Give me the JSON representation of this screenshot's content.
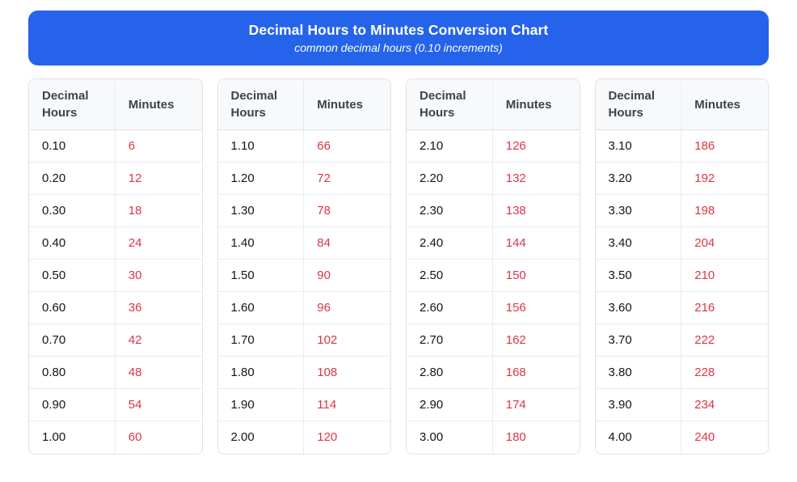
{
  "header": {
    "title": "Decimal Hours to Minutes Conversion Chart",
    "subtitle": "common decimal hours (0.10 increments)"
  },
  "colors": {
    "banner_bg": "#2563eb",
    "banner_text": "#ffffff",
    "minutes_text": "#dc3545",
    "hours_text": "#141414",
    "thead_bg": "#f8f9fa",
    "thead_text": "#3d434b",
    "table_border": "#dee2e6"
  },
  "chart_data": {
    "type": "table",
    "title": "Decimal Hours to Minutes Conversion Chart",
    "subtitle": "common decimal hours (0.10 increments)",
    "columns": [
      "Decimal Hours",
      "Minutes"
    ],
    "tables": [
      {
        "rows": [
          [
            "0.10",
            "6"
          ],
          [
            "0.20",
            "12"
          ],
          [
            "0.30",
            "18"
          ],
          [
            "0.40",
            "24"
          ],
          [
            "0.50",
            "30"
          ],
          [
            "0.60",
            "36"
          ],
          [
            "0.70",
            "42"
          ],
          [
            "0.80",
            "48"
          ],
          [
            "0.90",
            "54"
          ],
          [
            "1.00",
            "60"
          ]
        ]
      },
      {
        "rows": [
          [
            "1.10",
            "66"
          ],
          [
            "1.20",
            "72"
          ],
          [
            "1.30",
            "78"
          ],
          [
            "1.40",
            "84"
          ],
          [
            "1.50",
            "90"
          ],
          [
            "1.60",
            "96"
          ],
          [
            "1.70",
            "102"
          ],
          [
            "1.80",
            "108"
          ],
          [
            "1.90",
            "114"
          ],
          [
            "2.00",
            "120"
          ]
        ]
      },
      {
        "rows": [
          [
            "2.10",
            "126"
          ],
          [
            "2.20",
            "132"
          ],
          [
            "2.30",
            "138"
          ],
          [
            "2.40",
            "144"
          ],
          [
            "2.50",
            "150"
          ],
          [
            "2.60",
            "156"
          ],
          [
            "2.70",
            "162"
          ],
          [
            "2.80",
            "168"
          ],
          [
            "2.90",
            "174"
          ],
          [
            "3.00",
            "180"
          ]
        ]
      },
      {
        "rows": [
          [
            "3.10",
            "186"
          ],
          [
            "3.20",
            "192"
          ],
          [
            "3.30",
            "198"
          ],
          [
            "3.40",
            "204"
          ],
          [
            "3.50",
            "210"
          ],
          [
            "3.60",
            "216"
          ],
          [
            "3.70",
            "222"
          ],
          [
            "3.80",
            "228"
          ],
          [
            "3.90",
            "234"
          ],
          [
            "4.00",
            "240"
          ]
        ]
      }
    ]
  }
}
